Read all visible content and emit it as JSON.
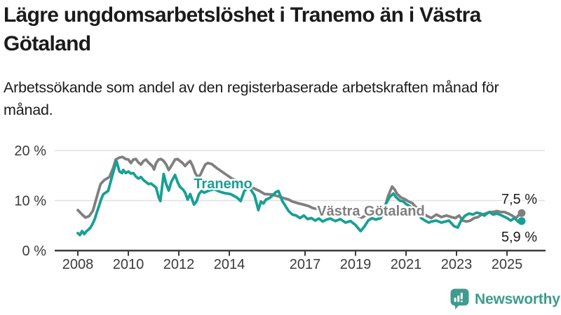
{
  "header": {
    "title": "Lägre ungdomsarbetslöshet i Tranemo än i Västra Götaland",
    "subtitle": "Arbetssökande som andel av den registerbaserade arbetskraften månad för månad."
  },
  "footer": {
    "brand": "Newsworthy"
  },
  "colors": {
    "tranemo": "#17a093",
    "vastra_gotaland": "#7f7f7f",
    "axis": "#3a3a3a",
    "gridline": "#e0e0e0",
    "brand_teal": "#3e9b8e"
  },
  "chart_data": {
    "type": "line",
    "title": "Lägre ungdomsarbetslöshet i Tranemo än i Västra Götaland",
    "subtitle": "Arbetssökande som andel av den registerbaserade arbetskraften månad för månad.",
    "xlabel": "",
    "ylabel": "",
    "ylim": [
      0,
      20
    ],
    "xlim": [
      2007.1,
      2026.5
    ],
    "grid": true,
    "legend_position": "inline",
    "y_ticks": [
      {
        "value": 0,
        "label": "0 %"
      },
      {
        "value": 10,
        "label": "10 %"
      },
      {
        "value": 20,
        "label": "20 %"
      }
    ],
    "x_ticks": [
      {
        "year": 2008,
        "label": "2008"
      },
      {
        "year": 2010,
        "label": "2010"
      },
      {
        "year": 2012,
        "label": "2012"
      },
      {
        "year": 2014,
        "label": "2014"
      },
      {
        "year": 2017,
        "label": "2017"
      },
      {
        "year": 2019,
        "label": "2019"
      },
      {
        "year": 2021,
        "label": "2021"
      },
      {
        "year": 2023,
        "label": "2023"
      },
      {
        "year": 2025,
        "label": "2025"
      }
    ],
    "series": [
      {
        "name": "Västra Götaland",
        "inline_label": "Västra Götaland",
        "end_label": "7,5 %",
        "end_value": 7.5,
        "color": "#7f7f7f",
        "points": [
          [
            2008.0,
            8.1
          ],
          [
            2008.15,
            7.3
          ],
          [
            2008.3,
            6.6
          ],
          [
            2008.45,
            6.9
          ],
          [
            2008.6,
            8.0
          ],
          [
            2008.75,
            10.7
          ],
          [
            2008.9,
            13.3
          ],
          [
            2009.05,
            14.1
          ],
          [
            2009.25,
            14.7
          ],
          [
            2009.4,
            16.5
          ],
          [
            2009.5,
            18.2
          ],
          [
            2009.65,
            18.6
          ],
          [
            2009.77,
            18.7
          ],
          [
            2009.9,
            18.3
          ],
          [
            2010.0,
            18.2
          ],
          [
            2010.1,
            17.5
          ],
          [
            2010.2,
            18.2
          ],
          [
            2010.3,
            18.3
          ],
          [
            2010.4,
            17.6
          ],
          [
            2010.5,
            17.2
          ],
          [
            2010.6,
            17.9
          ],
          [
            2010.7,
            18.2
          ],
          [
            2010.8,
            17.6
          ],
          [
            2010.95,
            16.9
          ],
          [
            2011.02,
            16.2
          ],
          [
            2011.1,
            17.5
          ],
          [
            2011.2,
            18.2
          ],
          [
            2011.3,
            18.3
          ],
          [
            2011.4,
            17.9
          ],
          [
            2011.5,
            17.2
          ],
          [
            2011.6,
            16.1
          ],
          [
            2011.7,
            16.9
          ],
          [
            2011.85,
            18.2
          ],
          [
            2011.95,
            18.3
          ],
          [
            2012.05,
            17.9
          ],
          [
            2012.15,
            17.5
          ],
          [
            2012.25,
            16.9
          ],
          [
            2012.35,
            17.5
          ],
          [
            2012.45,
            17.9
          ],
          [
            2012.55,
            16.9
          ],
          [
            2012.65,
            15.5
          ],
          [
            2012.75,
            14.7
          ],
          [
            2012.85,
            15.1
          ],
          [
            2012.95,
            16.2
          ],
          [
            2013.05,
            17.2
          ],
          [
            2013.15,
            17.5
          ],
          [
            2013.3,
            17.3
          ],
          [
            2013.5,
            16.5
          ],
          [
            2013.7,
            15.8
          ],
          [
            2013.9,
            15.1
          ],
          [
            2014.1,
            14.4
          ],
          [
            2014.4,
            13.7
          ],
          [
            2014.65,
            13.0
          ],
          [
            2014.9,
            12.6
          ],
          [
            2015.2,
            11.9
          ],
          [
            2015.4,
            11.3
          ],
          [
            2015.7,
            11.2
          ],
          [
            2015.9,
            10.9
          ],
          [
            2016.15,
            10.5
          ],
          [
            2016.35,
            10.2
          ],
          [
            2016.5,
            9.8
          ],
          [
            2016.7,
            9.5
          ],
          [
            2016.85,
            9.3
          ],
          [
            2017.0,
            9.1
          ],
          [
            2017.15,
            8.9
          ],
          [
            2017.3,
            8.5
          ],
          [
            2017.5,
            8.3
          ],
          [
            2017.7,
            8.1
          ],
          [
            2017.9,
            7.9
          ],
          [
            2018.1,
            7.8
          ],
          [
            2018.3,
            7.6
          ],
          [
            2018.5,
            7.7
          ],
          [
            2018.7,
            7.4
          ],
          [
            2018.9,
            7.2
          ],
          [
            2019.1,
            6.9
          ],
          [
            2019.25,
            6.6
          ],
          [
            2019.4,
            7.0
          ],
          [
            2019.6,
            7.1
          ],
          [
            2019.8,
            7.2
          ],
          [
            2020.0,
            7.4
          ],
          [
            2020.15,
            8.5
          ],
          [
            2020.3,
            11.0
          ],
          [
            2020.45,
            12.8
          ],
          [
            2020.55,
            12.2
          ],
          [
            2020.65,
            11.3
          ],
          [
            2020.8,
            10.6
          ],
          [
            2020.95,
            10.3
          ],
          [
            2021.1,
            9.8
          ],
          [
            2021.25,
            9.5
          ],
          [
            2021.35,
            8.9
          ],
          [
            2021.5,
            8.2
          ],
          [
            2021.65,
            7.5
          ],
          [
            2021.8,
            7.0
          ],
          [
            2022.0,
            6.5
          ],
          [
            2022.2,
            7.2
          ],
          [
            2022.4,
            6.7
          ],
          [
            2022.6,
            7.0
          ],
          [
            2022.8,
            6.7
          ],
          [
            2022.95,
            6.5
          ],
          [
            2023.1,
            7.0
          ],
          [
            2023.25,
            6.0
          ],
          [
            2023.4,
            5.8
          ],
          [
            2023.55,
            6.0
          ],
          [
            2023.7,
            6.5
          ],
          [
            2023.85,
            6.7
          ],
          [
            2024.0,
            7.2
          ],
          [
            2024.15,
            7.4
          ],
          [
            2024.3,
            7.7
          ],
          [
            2024.45,
            7.7
          ],
          [
            2024.6,
            7.9
          ],
          [
            2024.75,
            7.7
          ],
          [
            2024.9,
            7.7
          ],
          [
            2025.05,
            7.4
          ],
          [
            2025.2,
            7.0
          ],
          [
            2025.35,
            6.5
          ],
          [
            2025.45,
            7.0
          ],
          [
            2025.58,
            7.5
          ]
        ]
      },
      {
        "name": "Tranemo",
        "inline_label": "Tranemo",
        "end_label": "5,9 %",
        "end_value": 5.9,
        "color": "#17a093",
        "points": [
          [
            2008.0,
            3.5
          ],
          [
            2008.08,
            3.1
          ],
          [
            2008.17,
            3.9
          ],
          [
            2008.25,
            3.3
          ],
          [
            2008.33,
            3.8
          ],
          [
            2008.42,
            4.2
          ],
          [
            2008.5,
            4.6
          ],
          [
            2008.58,
            5.3
          ],
          [
            2008.67,
            6.3
          ],
          [
            2008.75,
            7.6
          ],
          [
            2008.83,
            8.8
          ],
          [
            2008.92,
            10.2
          ],
          [
            2009.0,
            11.2
          ],
          [
            2009.1,
            11.6
          ],
          [
            2009.2,
            11.9
          ],
          [
            2009.35,
            14.7
          ],
          [
            2009.45,
            16.5
          ],
          [
            2009.53,
            17.9
          ],
          [
            2009.65,
            15.8
          ],
          [
            2009.75,
            15.5
          ],
          [
            2009.8,
            16.1
          ],
          [
            2009.9,
            15.5
          ],
          [
            2010.0,
            15.8
          ],
          [
            2010.1,
            15.4
          ],
          [
            2010.2,
            15.5
          ],
          [
            2010.3,
            14.8
          ],
          [
            2010.4,
            14.4
          ],
          [
            2010.5,
            14.7
          ],
          [
            2010.6,
            14.1
          ],
          [
            2010.7,
            13.7
          ],
          [
            2010.8,
            13.3
          ],
          [
            2010.9,
            13.4
          ],
          [
            2011.0,
            13.0
          ],
          [
            2011.1,
            12.6
          ],
          [
            2011.2,
            10.7
          ],
          [
            2011.27,
            9.9
          ],
          [
            2011.4,
            15.3
          ],
          [
            2011.5,
            13.3
          ],
          [
            2011.6,
            12.0
          ],
          [
            2011.7,
            13.7
          ],
          [
            2011.85,
            15.1
          ],
          [
            2011.95,
            13.7
          ],
          [
            2012.05,
            12.7
          ],
          [
            2012.15,
            12.3
          ],
          [
            2012.25,
            11.6
          ],
          [
            2012.35,
            10.2
          ],
          [
            2012.45,
            11.3
          ],
          [
            2012.6,
            9.2
          ],
          [
            2012.7,
            9.8
          ],
          [
            2012.8,
            11.3
          ],
          [
            2012.9,
            11.9
          ],
          [
            2013.0,
            11.6
          ],
          [
            2013.2,
            12.0
          ],
          [
            2013.4,
            12.3
          ],
          [
            2013.6,
            11.8
          ],
          [
            2013.8,
            11.5
          ],
          [
            2014.05,
            11.3
          ],
          [
            2014.3,
            10.6
          ],
          [
            2014.45,
            9.9
          ],
          [
            2014.6,
            12.0
          ],
          [
            2014.8,
            12.6
          ],
          [
            2015.0,
            11.0
          ],
          [
            2015.15,
            8.1
          ],
          [
            2015.25,
            9.8
          ],
          [
            2015.35,
            9.4
          ],
          [
            2015.45,
            10.2
          ],
          [
            2015.6,
            10.5
          ],
          [
            2015.85,
            11.7
          ],
          [
            2015.95,
            11.9
          ],
          [
            2016.1,
            9.9
          ],
          [
            2016.2,
            9.1
          ],
          [
            2016.35,
            7.9
          ],
          [
            2016.5,
            7.2
          ],
          [
            2016.65,
            7.0
          ],
          [
            2016.8,
            6.5
          ],
          [
            2016.95,
            7.0
          ],
          [
            2017.1,
            6.3
          ],
          [
            2017.25,
            6.5
          ],
          [
            2017.4,
            6.0
          ],
          [
            2017.55,
            6.4
          ],
          [
            2017.7,
            5.8
          ],
          [
            2017.85,
            6.2
          ],
          [
            2018.0,
            6.4
          ],
          [
            2018.2,
            5.9
          ],
          [
            2018.4,
            6.3
          ],
          [
            2018.6,
            5.6
          ],
          [
            2018.8,
            5.9
          ],
          [
            2019.0,
            5.1
          ],
          [
            2019.2,
            3.9
          ],
          [
            2019.35,
            4.8
          ],
          [
            2019.5,
            6.0
          ],
          [
            2019.65,
            6.5
          ],
          [
            2019.8,
            6.2
          ],
          [
            2020.0,
            6.5
          ],
          [
            2020.2,
            9.3
          ],
          [
            2020.35,
            10.7
          ],
          [
            2020.5,
            11.4
          ],
          [
            2020.6,
            10.7
          ],
          [
            2020.75,
            10.0
          ],
          [
            2020.9,
            9.8
          ],
          [
            2021.0,
            9.3
          ],
          [
            2021.15,
            8.9
          ],
          [
            2021.3,
            8.2
          ],
          [
            2021.45,
            7.5
          ],
          [
            2021.6,
            6.5
          ],
          [
            2021.75,
            6.0
          ],
          [
            2021.9,
            5.6
          ],
          [
            2022.0,
            5.8
          ],
          [
            2022.2,
            6.0
          ],
          [
            2022.4,
            5.6
          ],
          [
            2022.55,
            5.8
          ],
          [
            2022.7,
            6.0
          ],
          [
            2022.9,
            4.9
          ],
          [
            2023.05,
            4.6
          ],
          [
            2023.2,
            6.2
          ],
          [
            2023.35,
            7.0
          ],
          [
            2023.5,
            7.4
          ],
          [
            2023.65,
            7.2
          ],
          [
            2023.8,
            7.6
          ],
          [
            2023.95,
            7.4
          ],
          [
            2024.1,
            7.0
          ],
          [
            2024.3,
            7.7
          ],
          [
            2024.45,
            7.2
          ],
          [
            2024.6,
            7.4
          ],
          [
            2024.8,
            7.0
          ],
          [
            2025.0,
            6.5
          ],
          [
            2025.15,
            6.0
          ],
          [
            2025.3,
            6.5
          ],
          [
            2025.45,
            5.7
          ],
          [
            2025.58,
            5.9
          ]
        ]
      }
    ]
  }
}
